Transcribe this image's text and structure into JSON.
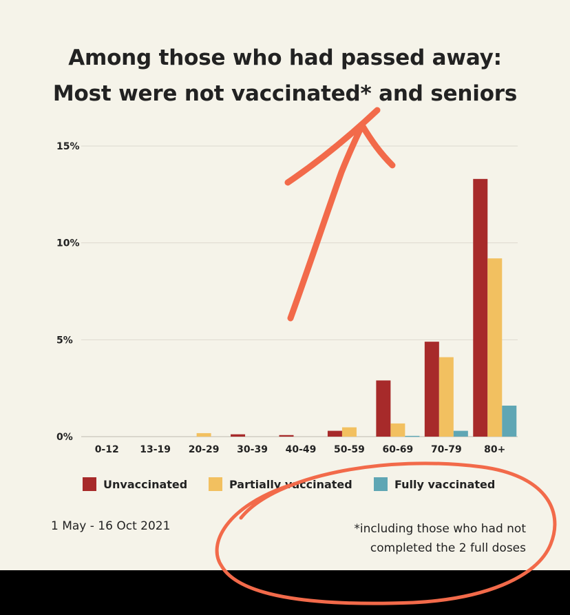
{
  "title": {
    "line1": "Among those who had passed away:",
    "line2": "Most were not vaccinated* and seniors"
  },
  "chart_data": {
    "type": "bar",
    "categories": [
      "0-12",
      "13-19",
      "20-29",
      "30-39",
      "40-49",
      "50-59",
      "60-69",
      "70-79",
      "80+"
    ],
    "series": [
      {
        "name": "Unvaccinated",
        "color": "#a72a2a",
        "values": [
          0,
          0,
          0,
          0.12,
          0.08,
          0.3,
          2.9,
          4.9,
          13.3
        ]
      },
      {
        "name": "Partially vaccinated",
        "color": "#f2c060",
        "values": [
          0,
          0,
          0.18,
          0,
          0,
          0.48,
          0.68,
          4.1,
          9.2
        ]
      },
      {
        "name": "Fully vaccinated",
        "color": "#5fa6b4",
        "values": [
          0,
          0,
          0,
          0,
          0,
          0,
          0.04,
          0.3,
          1.6
        ]
      }
    ],
    "yticks": [
      {
        "value": 15,
        "label": "15%"
      },
      {
        "value": 10,
        "label": "10%"
      },
      {
        "value": 5,
        "label": "5%"
      },
      {
        "value": 0,
        "label": "0%"
      }
    ],
    "ylim": [
      0,
      15
    ],
    "grid": true,
    "legend_position": "bottom"
  },
  "footnotes": {
    "date_range": "1 May - 16 Oct 2021",
    "note_line1": "*including those who had not",
    "note_line2": "completed the 2 full doses"
  },
  "annotation": {
    "color": "#f26a4a"
  }
}
